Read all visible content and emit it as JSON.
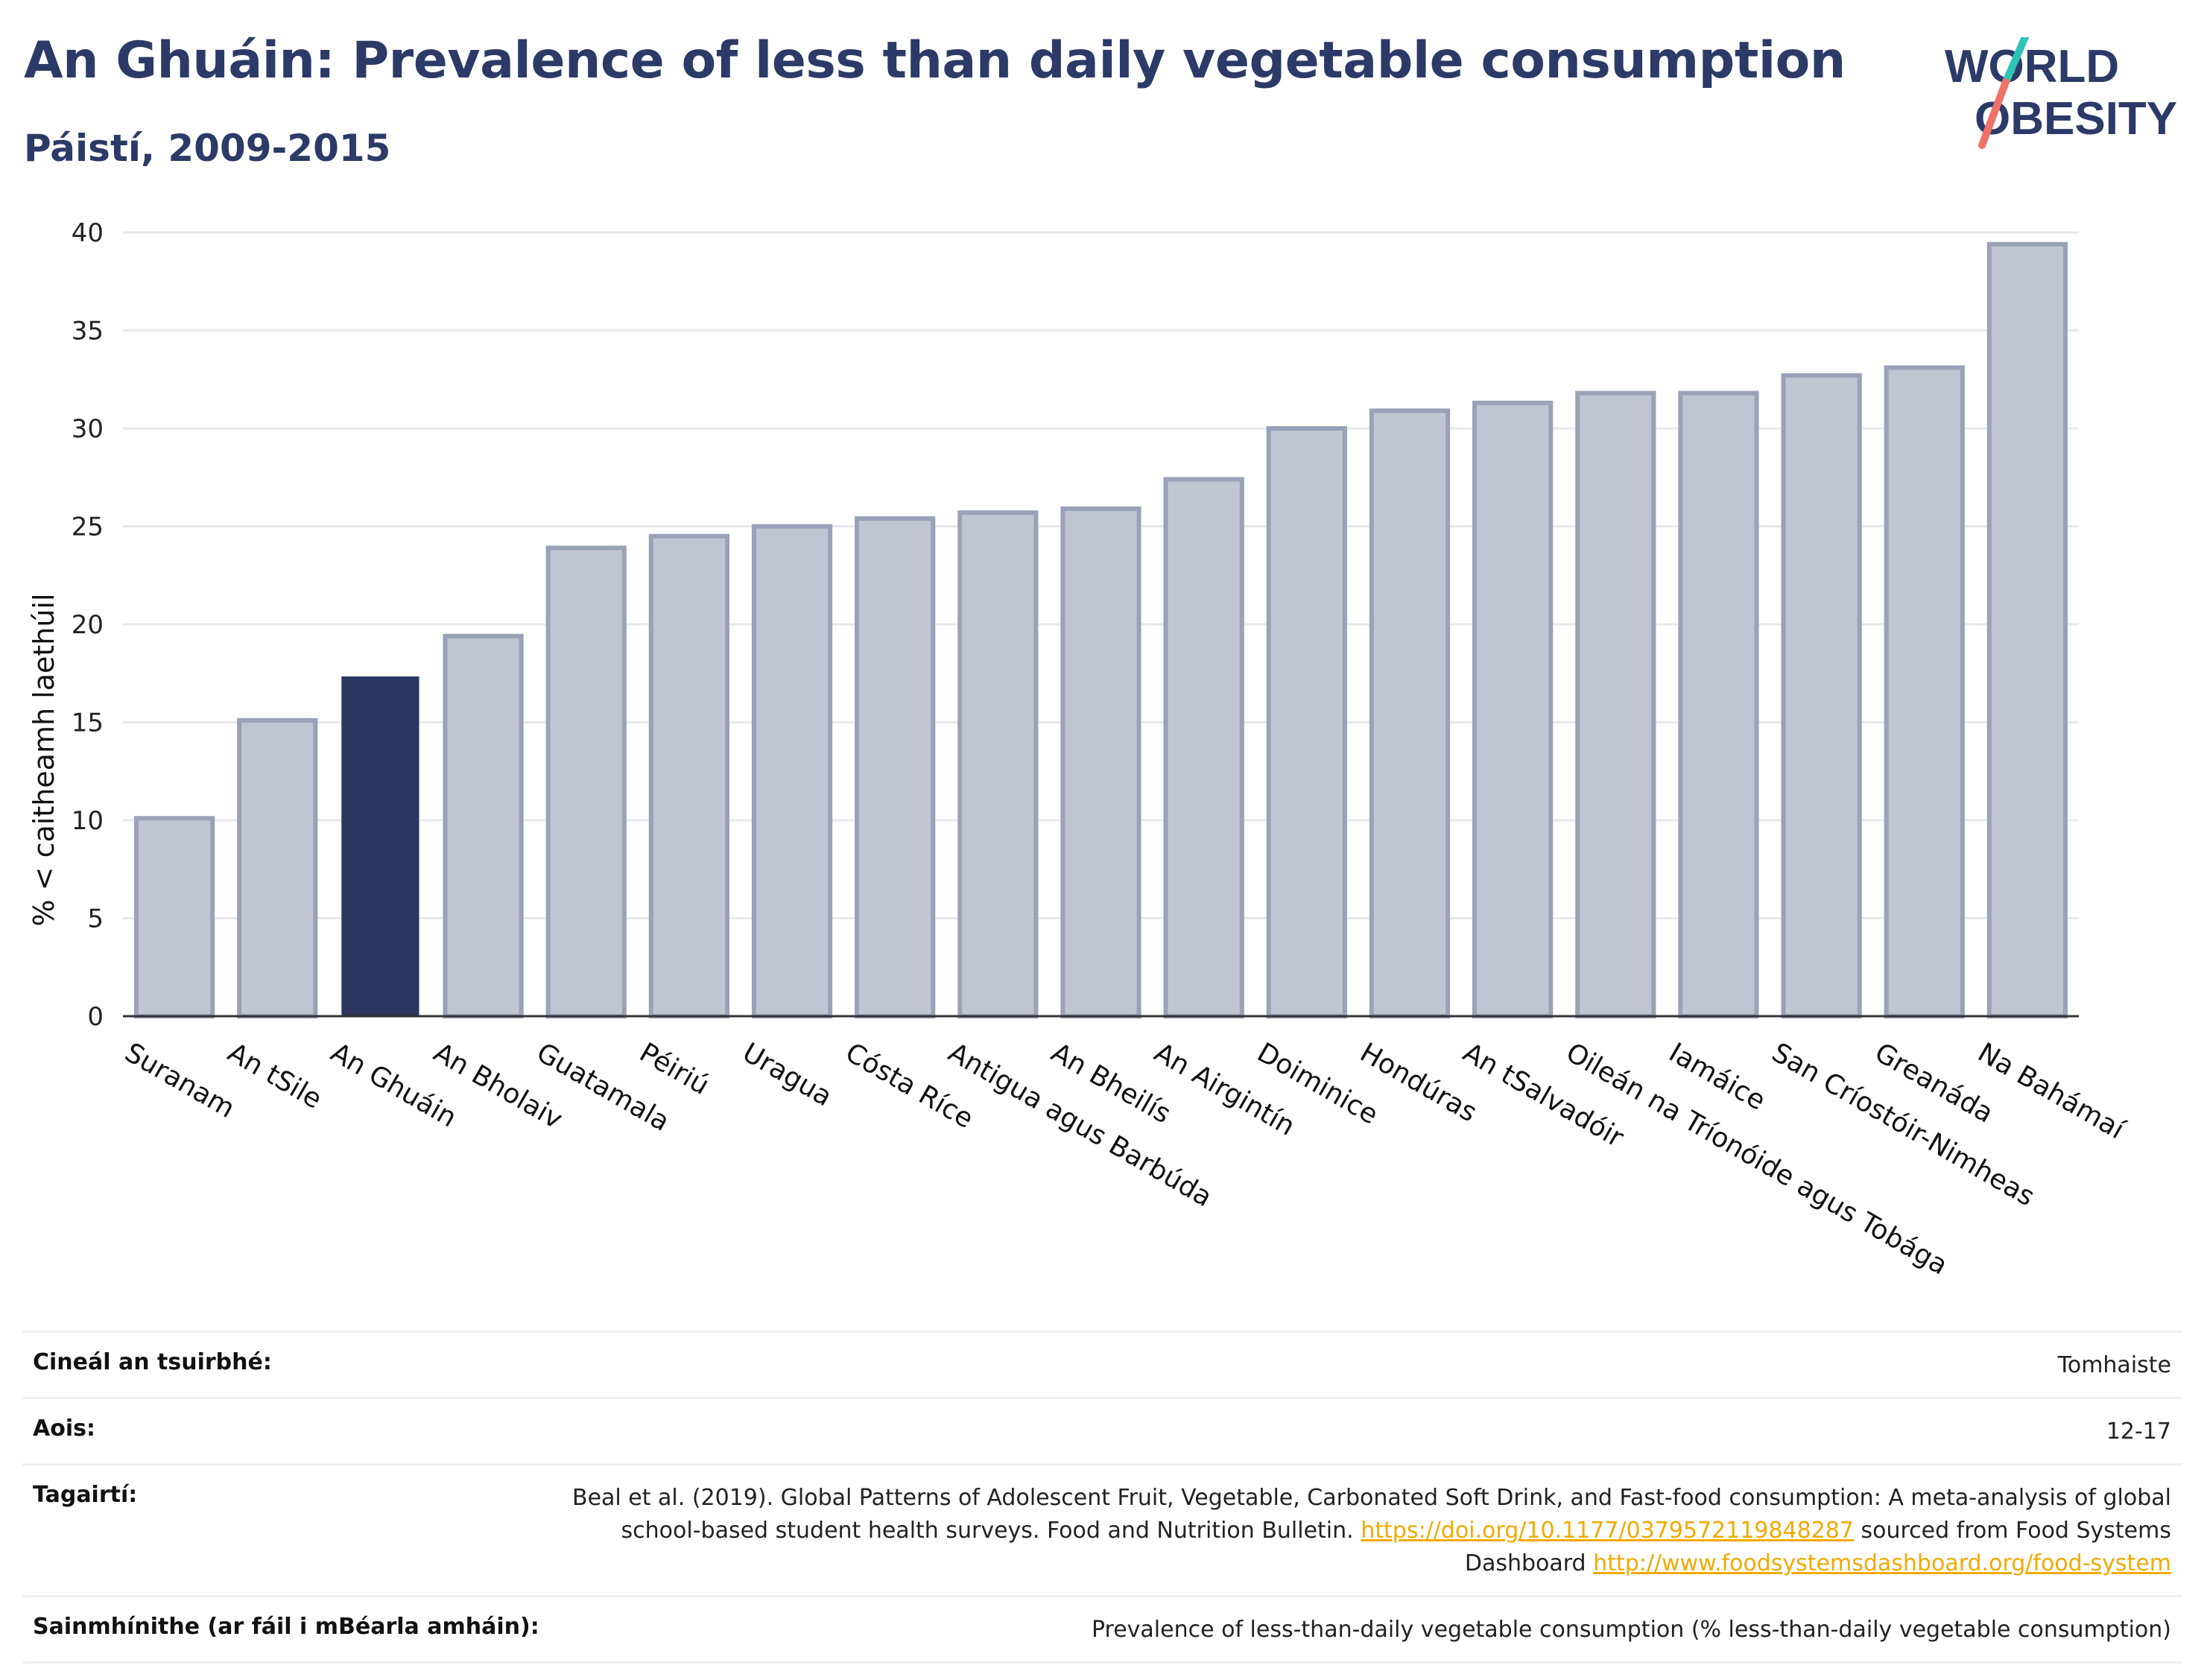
{
  "header": {
    "title": "An Ghuáin: Prevalence of less than daily vegetable consumption",
    "subtitle": "Páistí, 2009-2015"
  },
  "logo": {
    "line1": "WORLD",
    "line2": "OBESITY",
    "colors": {
      "text": "#2b3a67",
      "slash_top": "#2ec4b6",
      "slash_bottom": "#f07167"
    }
  },
  "chart_data": {
    "type": "bar",
    "title": "An Ghuáin: Prevalence of less than daily vegetable consumption",
    "subtitle": "Páistí, 2009-2015",
    "xlabel": "",
    "ylabel": "% < caitheamh laethúil",
    "ylim": [
      0,
      40
    ],
    "yticks": [
      0,
      5,
      10,
      15,
      20,
      25,
      30,
      35,
      40
    ],
    "grid": true,
    "highlight": "An Ghuáin",
    "colors": {
      "bar": "#c1c5d3",
      "bar_edge": "#9aa1b8",
      "highlight": "#2b3760",
      "grid": "#e9e9ee",
      "axis": "#333333"
    },
    "categories": [
      "Suranam",
      "An tSile",
      "An Ghuáin",
      "An Bholaiv",
      "Guatamala",
      "Péiriú",
      "Uragua",
      "Cósta Ríce",
      "Antigua agus Barbúda",
      "An Bheilís",
      "An Airgintín",
      "Doiminice",
      "Hondúras",
      "An tSalvadóir",
      "Oileán na Tríonóide agus Tobága",
      "Iamáice",
      "San Críostóir-Nimheas",
      "Greanáda",
      "Na Bahámaí"
    ],
    "values": [
      10.1,
      15.1,
      17.3,
      19.4,
      23.9,
      24.5,
      25.0,
      25.4,
      25.7,
      25.9,
      27.4,
      30.0,
      30.9,
      31.3,
      31.8,
      31.8,
      32.7,
      33.1,
      39.4
    ]
  },
  "info": [
    {
      "key": "Cineál an tsuirbhé:",
      "value": "Tomhaiste"
    },
    {
      "key": "Aois:",
      "value": "12-17"
    },
    {
      "key": "Tagairtí:",
      "value_parts": {
        "text1": "Beal et al. (2019). Global Patterns of Adolescent Fruit, Vegetable, Carbonated Soft Drink, and Fast-food consumption: A meta-analysis of global school-based student health surveys. Food and Nutrition Bulletin.",
        "link1": "https://doi.org/10.1177/0379572119848287",
        "text2": "sourced from Food Systems Dashboard",
        "link2": "http://www.foodsystemsdashboard.org/food-system"
      }
    },
    {
      "key": "Sainmhínithe (ar fáil i mBéarla amháin):",
      "value": "Prevalence of less-than-daily vegetable consumption (% less-than-daily vegetable consumption)"
    }
  ]
}
